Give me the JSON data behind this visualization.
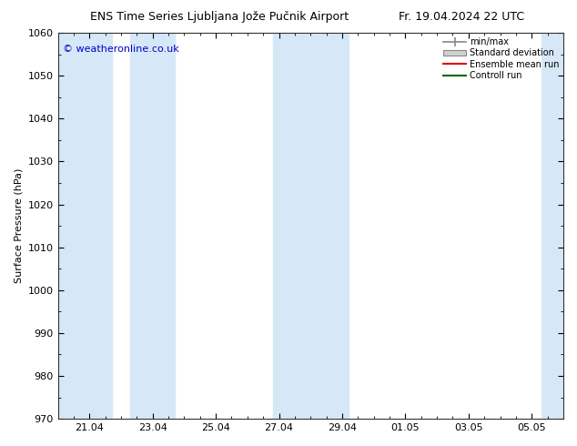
{
  "title_left": "ENS Time Series Ljubljana Jože Pučnik Airport",
  "title_right": "Fr. 19.04.2024 22 UTC",
  "ylabel": "Surface Pressure (hPa)",
  "ylim": [
    970,
    1060
  ],
  "ytick_step": 10,
  "watermark": "© weatheronline.co.uk",
  "bg_color": "#ffffff",
  "plot_bg_color": "#ffffff",
  "band_color": "#d6e8f7",
  "xtick_labels": [
    "21.04",
    "23.04",
    "25.04",
    "27.04",
    "29.04",
    "01.05",
    "03.05",
    "05.05"
  ],
  "xtick_positions": [
    1,
    3,
    5,
    7,
    9,
    11,
    13,
    15
  ],
  "xlim": [
    0,
    16
  ],
  "shaded_bands": [
    [
      0.0,
      1.7
    ],
    [
      2.3,
      3.7
    ],
    [
      6.8,
      9.2
    ],
    [
      15.3,
      16.0
    ]
  ],
  "minor_xtick_positions": [
    0,
    0.5,
    1,
    1.5,
    2,
    2.5,
    3,
    3.5,
    4,
    4.5,
    5,
    5.5,
    6,
    6.5,
    7,
    7.5,
    8,
    8.5,
    9,
    9.5,
    10,
    10.5,
    11,
    11.5,
    12,
    12.5,
    13,
    13.5,
    14,
    14.5,
    15,
    15.5,
    16
  ],
  "title_fontsize": 9,
  "ylabel_fontsize": 8,
  "tick_fontsize": 8,
  "legend_fontsize": 7,
  "watermark_color": "#0000cc",
  "watermark_fontsize": 8,
  "spine_color": "#333333",
  "legend_items": [
    {
      "label": "min/max"
    },
    {
      "label": "Standard deviation"
    },
    {
      "label": "Ensemble mean run"
    },
    {
      "label": "Controll run"
    }
  ]
}
